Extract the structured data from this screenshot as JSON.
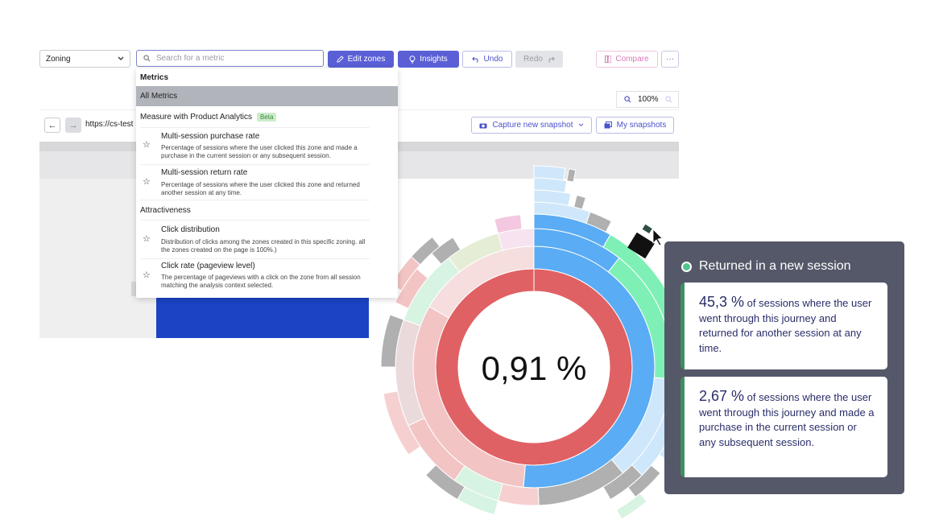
{
  "toolbar": {
    "view_select": "Zoning",
    "search_placeholder": "Search for a metric",
    "edit_zones": "Edit zones",
    "insights": "Insights",
    "undo": "Undo",
    "redo": "Redo",
    "compare": "Compare",
    "more": "···"
  },
  "page": {
    "zoom": "100%",
    "url": "https://cs-test",
    "capture_snapshot": "Capture new snapshot",
    "my_snapshots": "My snapshots"
  },
  "dropdown": {
    "header": "Metrics",
    "all_metrics": "All Metrics",
    "section_product": "Measure with Product Analytics",
    "beta": "Beta",
    "section_attractiveness": "Attractiveness",
    "items": [
      {
        "title": "Multi-session purchase rate",
        "desc": "Percentage of sessions where the user clicked this zone and made a purchase in the current session or any subsequent session."
      },
      {
        "title": "Multi-session return rate",
        "desc": "Percentage of sessions where the user clicked this zone and returned another session at any time."
      },
      {
        "title": "Click distribution",
        "desc": "Distribution of clicks among the zones created in this specific zoning. all the zones created on the page is 100%.)"
      },
      {
        "title": "Click rate (pageview level)",
        "desc": "The percentage of pageviews with a click on the zone from all session matching the analysis context selected."
      }
    ]
  },
  "sunburst": {
    "center_value": "0,91 %"
  },
  "tooltip": {
    "title": "Returned in a new session",
    "cards": [
      {
        "value": "45,3 %",
        "text": "of sessions where the user went through this journey and returned for another session at any time."
      },
      {
        "value": "2,67 %",
        "text": "of sessions where the user went through this journey and made a purchase in the current session or any subsequent session."
      }
    ]
  },
  "colors": {
    "accent": "#5a5fd6",
    "ring_red": "#e06164",
    "ring_blue": "#5aacf4",
    "ring_green": "#7ef0b6",
    "tooltip_bg": "#545869"
  }
}
